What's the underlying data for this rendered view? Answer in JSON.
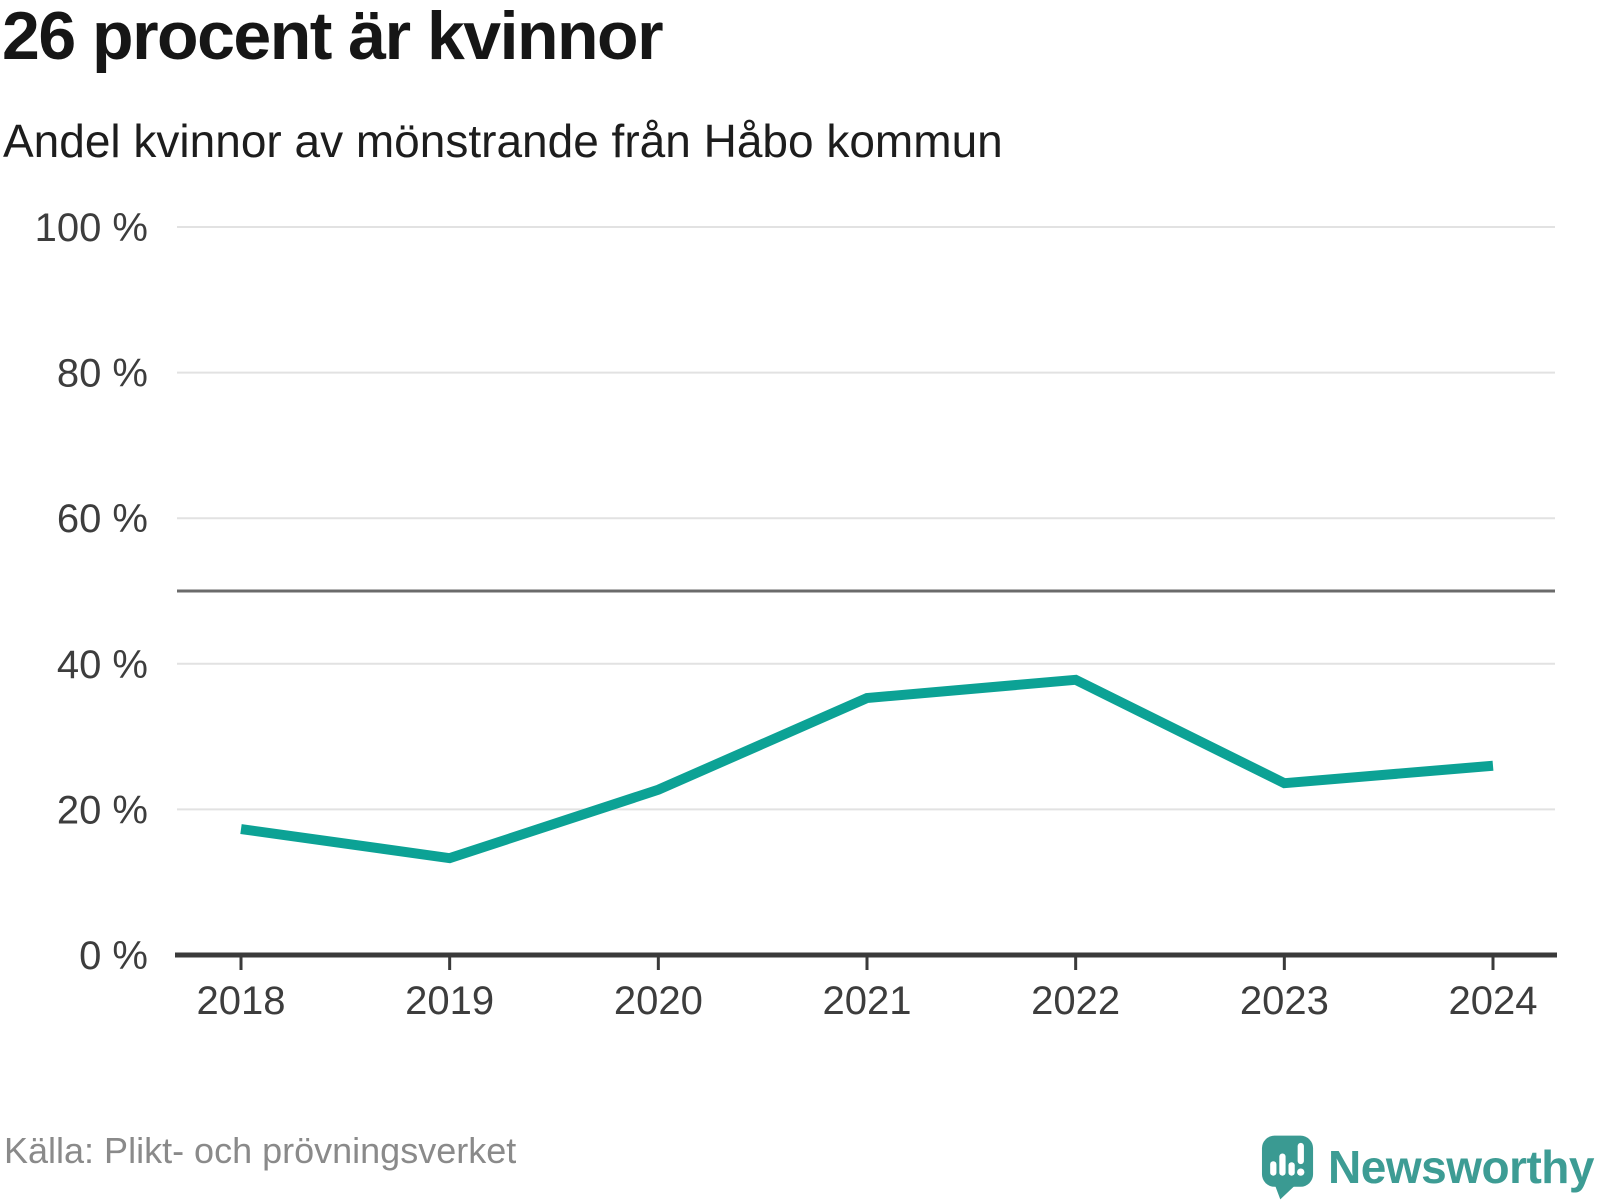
{
  "header": {
    "title": "26 procent är kvinnor",
    "subtitle": "Andel kvinnor av mönstrande från Håbo kommun"
  },
  "footer": {
    "source": "Källa: Plikt- och prövningsverket",
    "brand": "Newsworthy"
  },
  "colors": {
    "line": "#0ca295",
    "grid": "#e2e2e2",
    "reference": "#6b6b6b",
    "axis": "#3a3a3a",
    "tick_label": "#3d3d3d",
    "title": "#161616",
    "source_text": "#8a8a8a",
    "brand_teal": "#3d9c94",
    "logo_teal": "#3a9a92"
  },
  "chart_data": {
    "type": "line",
    "title": "26 procent är kvinnor",
    "subtitle": "Andel kvinnor av mönstrande från Håbo kommun",
    "x": [
      2018,
      2019,
      2020,
      2021,
      2022,
      2023,
      2024
    ],
    "x_labels": [
      "2018",
      "2019",
      "2020",
      "2021",
      "2022",
      "2023",
      "2024"
    ],
    "series": [
      {
        "name": "Andel kvinnor av mönstrande",
        "values": [
          17.3,
          13.3,
          22.7,
          35.3,
          37.8,
          23.6,
          26.0
        ]
      }
    ],
    "xlabel": "",
    "ylabel": "",
    "ylim": [
      0,
      100
    ],
    "yticks": [
      0,
      20,
      40,
      60,
      80,
      100
    ],
    "y_tick_labels": [
      "0 %",
      "20 %",
      "40 %",
      "60 %",
      "80 %",
      "100 %"
    ],
    "y_unit": "%",
    "reference_line": 50,
    "grid": true,
    "legend": false,
    "line_width": 10
  }
}
